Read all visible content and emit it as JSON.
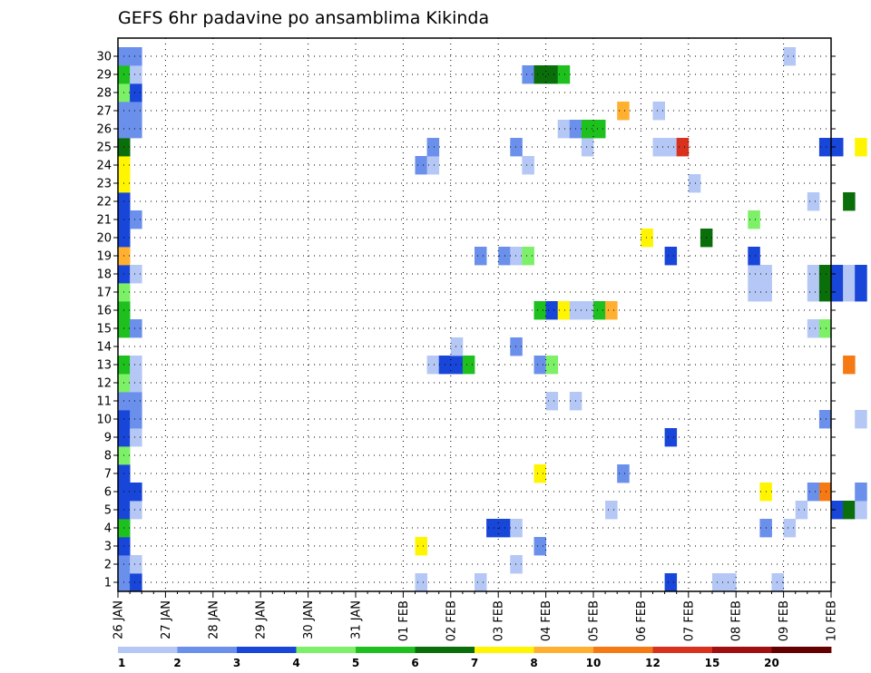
{
  "chart_data": {
    "type": "heatmap",
    "title": "GEFS 6hr padavine po ansamblima Kikinda",
    "xlabel": "",
    "ylabel": "",
    "grid": true,
    "legend_position": "bottom",
    "x_ticks": [
      "26 JAN",
      "27 JAN",
      "28 JAN",
      "29 JAN",
      "30 JAN",
      "31 JAN",
      "01 FEB",
      "02 FEB",
      "03 FEB",
      "04 FEB",
      "05 FEB",
      "06 FEB",
      "07 FEB",
      "08 FEB",
      "09 FEB",
      "10 FEB"
    ],
    "y_ticks": [
      1,
      2,
      3,
      4,
      5,
      6,
      7,
      8,
      9,
      10,
      11,
      12,
      13,
      14,
      15,
      16,
      17,
      18,
      19,
      20,
      21,
      22,
      23,
      24,
      25,
      26,
      27,
      28,
      29,
      30
    ],
    "levels": [
      "1",
      "2",
      "3",
      "4",
      "5",
      "6",
      "7",
      "8",
      "10",
      "12",
      "15",
      "20"
    ],
    "colors": [
      "#b4c7f5",
      "#6a90ec",
      "#1846d8",
      "#7cf066",
      "#1ec01e",
      "#0a6e0a",
      "#fff500",
      "#ffb030",
      "#f57a14",
      "#d8321e",
      "#a01010",
      "#640000"
    ],
    "cells": [
      {
        "m": 1,
        "s": 0,
        "c": 1
      },
      {
        "m": 1,
        "s": 1,
        "c": 2
      },
      {
        "m": 2,
        "s": 0,
        "c": 1
      },
      {
        "m": 2,
        "s": 1,
        "c": 0
      },
      {
        "m": 3,
        "s": 0,
        "c": 2
      },
      {
        "m": 4,
        "s": 0,
        "c": 4
      },
      {
        "m": 5,
        "s": 0,
        "c": 2
      },
      {
        "m": 5,
        "s": 1,
        "c": 0
      },
      {
        "m": 6,
        "s": 0,
        "c": 2
      },
      {
        "m": 6,
        "s": 1,
        "c": 2
      },
      {
        "m": 7,
        "s": 0,
        "c": 2
      },
      {
        "m": 8,
        "s": 0,
        "c": 3
      },
      {
        "m": 9,
        "s": 0,
        "c": 2
      },
      {
        "m": 9,
        "s": 1,
        "c": 0
      },
      {
        "m": 10,
        "s": 0,
        "c": 2
      },
      {
        "m": 10,
        "s": 1,
        "c": 1
      },
      {
        "m": 11,
        "s": 0,
        "c": 1
      },
      {
        "m": 11,
        "s": 1,
        "c": 1
      },
      {
        "m": 12,
        "s": 0,
        "c": 3
      },
      {
        "m": 12,
        "s": 1,
        "c": 0
      },
      {
        "m": 13,
        "s": 0,
        "c": 4
      },
      {
        "m": 13,
        "s": 1,
        "c": 0
      },
      {
        "m": 15,
        "s": 0,
        "c": 4
      },
      {
        "m": 15,
        "s": 1,
        "c": 1
      },
      {
        "m": 16,
        "s": 0,
        "c": 4
      },
      {
        "m": 17,
        "s": 0,
        "c": 3
      },
      {
        "m": 18,
        "s": 0,
        "c": 2
      },
      {
        "m": 18,
        "s": 1,
        "c": 0
      },
      {
        "m": 19,
        "s": 0,
        "c": 7
      },
      {
        "m": 20,
        "s": 0,
        "c": 2
      },
      {
        "m": 21,
        "s": 0,
        "c": 2
      },
      {
        "m": 21,
        "s": 1,
        "c": 1
      },
      {
        "m": 22,
        "s": 0,
        "c": 2
      },
      {
        "m": 23,
        "s": 0,
        "c": 6
      },
      {
        "m": 24,
        "s": 0,
        "c": 6
      },
      {
        "m": 25,
        "s": 0,
        "c": 5
      },
      {
        "m": 26,
        "s": 0,
        "c": 1
      },
      {
        "m": 26,
        "s": 1,
        "c": 1
      },
      {
        "m": 27,
        "s": 0,
        "c": 1
      },
      {
        "m": 27,
        "s": 1,
        "c": 1
      },
      {
        "m": 28,
        "s": 0,
        "c": 3
      },
      {
        "m": 28,
        "s": 1,
        "c": 2
      },
      {
        "m": 29,
        "s": 0,
        "c": 4
      },
      {
        "m": 29,
        "s": 1,
        "c": 0
      },
      {
        "m": 30,
        "s": 0,
        "c": 1
      },
      {
        "m": 30,
        "s": 1,
        "c": 1
      },
      {
        "m": 1,
        "s": 25,
        "c": 0
      },
      {
        "m": 1,
        "s": 30,
        "c": 0
      },
      {
        "m": 1,
        "s": 46,
        "c": 2
      },
      {
        "m": 1,
        "s": 50,
        "c": 0
      },
      {
        "m": 1,
        "s": 51,
        "c": 0
      },
      {
        "m": 1,
        "s": 55,
        "c": 0
      },
      {
        "m": 2,
        "s": 33,
        "c": 0
      },
      {
        "m": 3,
        "s": 25,
        "c": 6
      },
      {
        "m": 3,
        "s": 35,
        "c": 1
      },
      {
        "m": 4,
        "s": 31,
        "c": 2
      },
      {
        "m": 4,
        "s": 32,
        "c": 2
      },
      {
        "m": 4,
        "s": 33,
        "c": 0
      },
      {
        "m": 4,
        "s": 54,
        "c": 1
      },
      {
        "m": 4,
        "s": 56,
        "c": 0
      },
      {
        "m": 5,
        "s": 41,
        "c": 0
      },
      {
        "m": 5,
        "s": 57,
        "c": 0
      },
      {
        "m": 5,
        "s": 60,
        "c": 2
      },
      {
        "m": 5,
        "s": 61,
        "c": 5
      },
      {
        "m": 5,
        "s": 62,
        "c": 0
      },
      {
        "m": 6,
        "s": 54,
        "c": 6
      },
      {
        "m": 6,
        "s": 58,
        "c": 1
      },
      {
        "m": 6,
        "s": 59,
        "c": 8
      },
      {
        "m": 6,
        "s": 62,
        "c": 1
      },
      {
        "m": 7,
        "s": 35,
        "c": 6
      },
      {
        "m": 7,
        "s": 42,
        "c": 1
      },
      {
        "m": 9,
        "s": 46,
        "c": 2
      },
      {
        "m": 10,
        "s": 59,
        "c": 1
      },
      {
        "m": 10,
        "s": 62,
        "c": 0
      },
      {
        "m": 11,
        "s": 36,
        "c": 0
      },
      {
        "m": 11,
        "s": 38,
        "c": 0
      },
      {
        "m": 13,
        "s": 26,
        "c": 0
      },
      {
        "m": 13,
        "s": 27,
        "c": 2
      },
      {
        "m": 13,
        "s": 28,
        "c": 2
      },
      {
        "m": 13,
        "s": 29,
        "c": 4
      },
      {
        "m": 13,
        "s": 35,
        "c": 1
      },
      {
        "m": 13,
        "s": 36,
        "c": 3
      },
      {
        "m": 13,
        "s": 61,
        "c": 8
      },
      {
        "m": 14,
        "s": 28,
        "c": 0
      },
      {
        "m": 14,
        "s": 33,
        "c": 1
      },
      {
        "m": 15,
        "s": 58,
        "c": 0
      },
      {
        "m": 15,
        "s": 59,
        "c": 3
      },
      {
        "m": 16,
        "s": 35,
        "c": 4
      },
      {
        "m": 16,
        "s": 36,
        "c": 2
      },
      {
        "m": 16,
        "s": 37,
        "c": 6
      },
      {
        "m": 16,
        "s": 38,
        "c": 0
      },
      {
        "m": 16,
        "s": 39,
        "c": 0
      },
      {
        "m": 16,
        "s": 40,
        "c": 4
      },
      {
        "m": 16,
        "s": 41,
        "c": 7
      },
      {
        "m": 17,
        "s": 53,
        "c": 0
      },
      {
        "m": 17,
        "s": 54,
        "c": 0
      },
      {
        "m": 17,
        "s": 58,
        "c": 0
      },
      {
        "m": 17,
        "s": 59,
        "c": 5
      },
      {
        "m": 17,
        "s": 60,
        "c": 2
      },
      {
        "m": 17,
        "s": 61,
        "c": 0
      },
      {
        "m": 17,
        "s": 62,
        "c": 2
      },
      {
        "m": 18,
        "s": 53,
        "c": 0
      },
      {
        "m": 18,
        "s": 54,
        "c": 0
      },
      {
        "m": 18,
        "s": 58,
        "c": 0
      },
      {
        "m": 18,
        "s": 59,
        "c": 5
      },
      {
        "m": 18,
        "s": 60,
        "c": 2
      },
      {
        "m": 18,
        "s": 61,
        "c": 0
      },
      {
        "m": 18,
        "s": 62,
        "c": 2
      },
      {
        "m": 19,
        "s": 30,
        "c": 1
      },
      {
        "m": 19,
        "s": 32,
        "c": 1
      },
      {
        "m": 19,
        "s": 33,
        "c": 0
      },
      {
        "m": 19,
        "s": 34,
        "c": 3
      },
      {
        "m": 19,
        "s": 46,
        "c": 2
      },
      {
        "m": 19,
        "s": 53,
        "c": 2
      },
      {
        "m": 20,
        "s": 44,
        "c": 6
      },
      {
        "m": 20,
        "s": 49,
        "c": 5
      },
      {
        "m": 21,
        "s": 53,
        "c": 3
      },
      {
        "m": 22,
        "s": 58,
        "c": 0
      },
      {
        "m": 22,
        "s": 61,
        "c": 5
      },
      {
        "m": 23,
        "s": 48,
        "c": 0
      },
      {
        "m": 24,
        "s": 25,
        "c": 1
      },
      {
        "m": 24,
        "s": 26,
        "c": 0
      },
      {
        "m": 24,
        "s": 34,
        "c": 0
      },
      {
        "m": 25,
        "s": 26,
        "c": 1
      },
      {
        "m": 25,
        "s": 33,
        "c": 1
      },
      {
        "m": 25,
        "s": 39,
        "c": 0
      },
      {
        "m": 25,
        "s": 45,
        "c": 0
      },
      {
        "m": 25,
        "s": 46,
        "c": 0
      },
      {
        "m": 25,
        "s": 47,
        "c": 9
      },
      {
        "m": 25,
        "s": 59,
        "c": 2
      },
      {
        "m": 25,
        "s": 60,
        "c": 2
      },
      {
        "m": 25,
        "s": 62,
        "c": 6
      },
      {
        "m": 26,
        "s": 37,
        "c": 0
      },
      {
        "m": 26,
        "s": 38,
        "c": 1
      },
      {
        "m": 26,
        "s": 39,
        "c": 4
      },
      {
        "m": 26,
        "s": 40,
        "c": 4
      },
      {
        "m": 27,
        "s": 42,
        "c": 7
      },
      {
        "m": 27,
        "s": 45,
        "c": 0
      },
      {
        "m": 29,
        "s": 34,
        "c": 1
      },
      {
        "m": 29,
        "s": 35,
        "c": 5
      },
      {
        "m": 29,
        "s": 36,
        "c": 5
      },
      {
        "m": 29,
        "s": 37,
        "c": 4
      },
      {
        "m": 30,
        "s": 56,
        "c": 0
      }
    ]
  }
}
